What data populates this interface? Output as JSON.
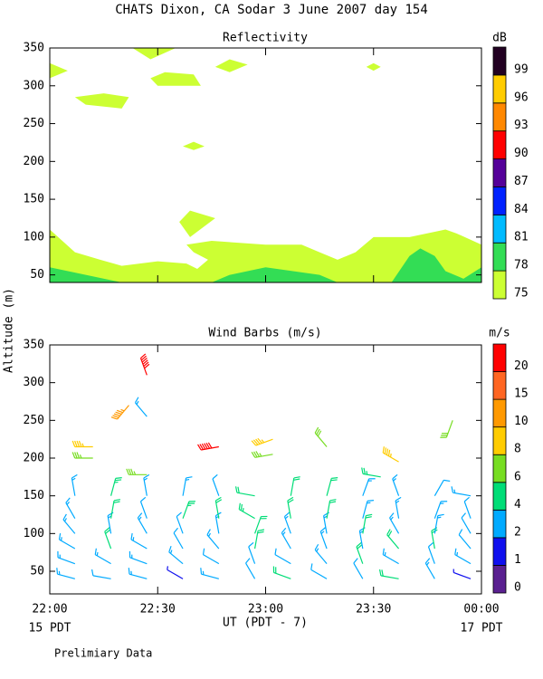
{
  "title": "CHATS Dixon, CA   Sodar    3 June 2007   day 154",
  "y_label": "Altitude (m)",
  "x_label": "UT  (PDT - 7)",
  "x_start_note": "15 PDT",
  "x_end_note": "17 PDT",
  "footer": "Prelimiary Data",
  "chart_data": [
    {
      "type": "contour",
      "title": "Reflectivity",
      "xlim": [
        0,
        120
      ],
      "ylim": [
        40,
        350
      ],
      "yticks": [
        50,
        100,
        150,
        200,
        250,
        300,
        350
      ],
      "colorbar": {
        "label": "dB",
        "levels": [
          75,
          78,
          81,
          84,
          87,
          90,
          93,
          96,
          99
        ],
        "colors": [
          "#ccff33",
          "#33dd55",
          "#00bbff",
          "#0022ff",
          "#550099",
          "#ff0000",
          "#ff8800",
          "#ffcc00",
          "#220022"
        ]
      },
      "regions": [
        {
          "value": 75,
          "x": [
            0,
            0,
            7,
            14,
            20,
            30,
            38,
            41,
            44,
            40,
            38,
            45,
            60,
            70,
            75,
            80,
            85,
            90,
            100,
            110,
            113,
            120,
            120
          ],
          "y": [
            40,
            110,
            80,
            70,
            62,
            68,
            65,
            58,
            70,
            80,
            90,
            95,
            90,
            90,
            80,
            70,
            80,
            100,
            100,
            110,
            105,
            90,
            40
          ]
        },
        {
          "value": 78,
          "x": [
            0,
            0,
            20
          ],
          "y": [
            40,
            60,
            40
          ]
        },
        {
          "value": 78,
          "x": [
            45,
            50,
            60,
            75,
            80
          ],
          "y": [
            40,
            50,
            60,
            50,
            40
          ]
        },
        {
          "value": 78,
          "x": [
            95,
            100,
            103,
            107,
            110,
            115,
            120,
            120
          ],
          "y": [
            40,
            75,
            85,
            75,
            55,
            45,
            60,
            40
          ]
        },
        {
          "value": 75,
          "x": [
            0,
            5,
            0
          ],
          "y": [
            330,
            320,
            310
          ]
        },
        {
          "value": 75,
          "x": [
            7,
            15,
            22,
            20,
            10
          ],
          "y": [
            285,
            290,
            285,
            270,
            275
          ]
        },
        {
          "value": 75,
          "x": [
            23,
            28,
            35
          ],
          "y": [
            350,
            335,
            350
          ]
        },
        {
          "value": 75,
          "x": [
            28,
            30,
            42,
            40,
            32
          ],
          "y": [
            310,
            300,
            300,
            315,
            318
          ]
        },
        {
          "value": 75,
          "x": [
            46,
            50,
            55,
            50
          ],
          "y": [
            325,
            318,
            328,
            335
          ]
        },
        {
          "value": 75,
          "x": [
            88,
            90,
            92,
            90
          ],
          "y": [
            325,
            320,
            325,
            330
          ]
        },
        {
          "value": 75,
          "x": [
            37,
            40,
            43,
            40
          ],
          "y": [
            220,
            226,
            220,
            215
          ]
        },
        {
          "value": 75,
          "x": [
            36,
            39,
            46,
            39
          ],
          "y": [
            120,
            135,
            125,
            100
          ]
        }
      ]
    },
    {
      "type": "barbs",
      "title": "Wind Barbs (m/s)",
      "xlim": [
        0,
        120
      ],
      "ylim": [
        20,
        350
      ],
      "yticks": [
        50,
        100,
        150,
        200,
        250,
        300,
        350
      ],
      "xticks": [
        {
          "value": 0,
          "label": "22:00"
        },
        {
          "value": 30,
          "label": "22:30"
        },
        {
          "value": 60,
          "label": "23:00"
        },
        {
          "value": 90,
          "label": "23:30"
        },
        {
          "value": 120,
          "label": "00:00"
        }
      ],
      "colorbar": {
        "label": "m/s",
        "levels": [
          0,
          1,
          2,
          4,
          6,
          8,
          10,
          15,
          20
        ],
        "colors": [
          "#5a2090",
          "#1010ee",
          "#00aaff",
          "#00dd77",
          "#77dd22",
          "#ffcc00",
          "#ff9900",
          "#ff6622",
          "#ff0000"
        ]
      },
      "time": [
        7,
        7,
        7,
        7,
        7,
        7,
        17,
        17,
        17,
        17,
        17,
        17,
        27,
        27,
        27,
        27,
        27,
        27,
        37,
        37,
        37,
        37,
        37,
        37,
        47,
        47,
        47,
        47,
        47,
        47,
        57,
        57,
        57,
        57,
        57,
        57,
        67,
        67,
        67,
        67,
        67,
        67,
        77,
        77,
        77,
        77,
        77,
        77,
        87,
        87,
        87,
        87,
        87,
        87,
        97,
        97,
        97,
        97,
        97,
        97,
        107,
        107,
        107,
        107,
        107,
        107,
        117,
        117,
        117,
        117,
        117,
        117,
        12,
        12,
        22,
        27,
        27,
        27,
        47,
        62,
        62,
        77,
        92,
        97,
        112
      ],
      "altitude": [
        40,
        60,
        80,
        100,
        120,
        150,
        40,
        60,
        80,
        100,
        120,
        150,
        40,
        60,
        80,
        100,
        120,
        150,
        40,
        60,
        80,
        100,
        120,
        150,
        40,
        60,
        80,
        100,
        120,
        150,
        40,
        60,
        80,
        100,
        120,
        150,
        40,
        60,
        80,
        100,
        120,
        150,
        40,
        60,
        80,
        100,
        120,
        150,
        40,
        60,
        80,
        100,
        120,
        150,
        40,
        60,
        80,
        100,
        120,
        150,
        40,
        60,
        80,
        100,
        120,
        150,
        40,
        60,
        80,
        100,
        120,
        150,
        215,
        200,
        270,
        310,
        255,
        178,
        215,
        225,
        205,
        215,
        175,
        195,
        250
      ],
      "speed": [
        3,
        3,
        3,
        3,
        3,
        3,
        2,
        3,
        4,
        3,
        4,
        5,
        3,
        3,
        3,
        3,
        2,
        3,
        1,
        3,
        2,
        2,
        5,
        3,
        3,
        2,
        3,
        3,
        4,
        2,
        2,
        2,
        4,
        4,
        5,
        4,
        4,
        2,
        3,
        3,
        4,
        4,
        2,
        3,
        3,
        3,
        4,
        4,
        2,
        4,
        3,
        4,
        3,
        3,
        4,
        3,
        4,
        3,
        3,
        3,
        3,
        2,
        4,
        3,
        3,
        2,
        1,
        3,
        2,
        2,
        2,
        3,
        9,
        7,
        11,
        21,
        3,
        7,
        21,
        9,
        7,
        6,
        5,
        9,
        6
      ],
      "direction": [
        285,
        290,
        300,
        320,
        330,
        350,
        280,
        300,
        340,
        350,
        10,
        15,
        285,
        290,
        300,
        330,
        340,
        350,
        300,
        310,
        330,
        340,
        20,
        10,
        285,
        300,
        320,
        350,
        350,
        340,
        330,
        340,
        10,
        20,
        300,
        280,
        290,
        300,
        330,
        340,
        350,
        10,
        300,
        320,
        340,
        350,
        10,
        15,
        330,
        340,
        350,
        10,
        15,
        20,
        280,
        300,
        320,
        330,
        350,
        340,
        330,
        340,
        350,
        10,
        20,
        30,
        290,
        300,
        320,
        330,
        340,
        280,
        270,
        270,
        220,
        340,
        320,
        270,
        260,
        250,
        260,
        320,
        280,
        300,
        200
      ]
    }
  ]
}
